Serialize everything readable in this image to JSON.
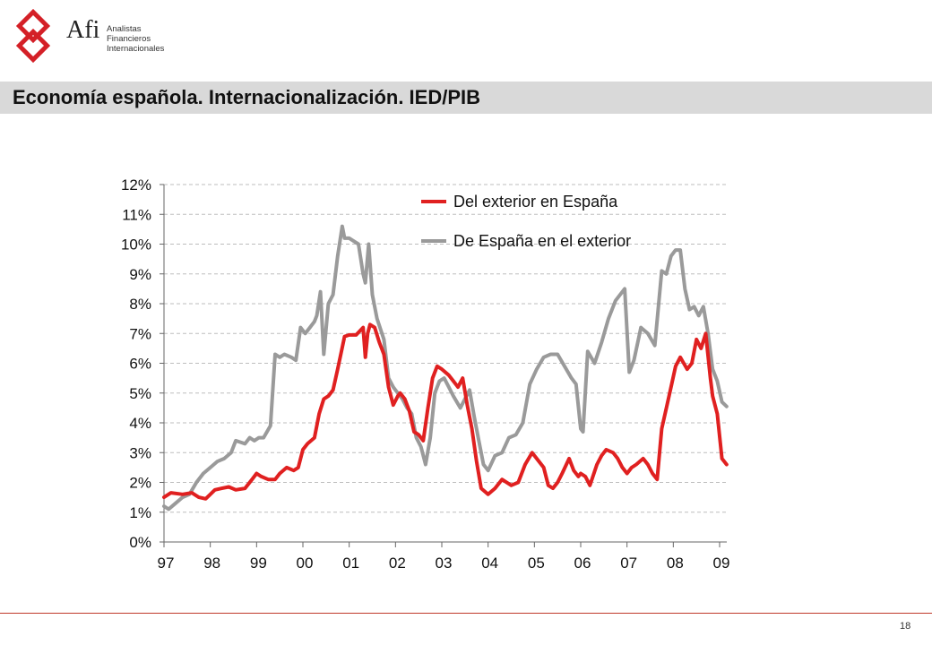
{
  "header": {
    "logo_mark": "Afi",
    "logo_lines": [
      "Analistas",
      "Financieros",
      "Internacionales"
    ],
    "title": "Economía española. Internacionalización. IED/PIB"
  },
  "footer": {
    "page_number": "18"
  },
  "colors": {
    "red_series": "#e02020",
    "gray_series": "#9a9a9a",
    "logo_red": "#d42027"
  },
  "chart_data": {
    "type": "line",
    "title": "",
    "xlabel": "",
    "ylabel": "",
    "ylim": [
      0,
      12
    ],
    "xlim": [
      1997.0,
      2009.15
    ],
    "yticks": [
      "0%",
      "1%",
      "2%",
      "3%",
      "4%",
      "5%",
      "6%",
      "7%",
      "8%",
      "9%",
      "10%",
      "11%",
      "12%"
    ],
    "xtick_labels": [
      "97",
      "98",
      "99",
      "00",
      "01",
      "02",
      "03",
      "04",
      "05",
      "06",
      "07",
      "08",
      "09"
    ],
    "grid": "horizontal dashed",
    "legend_position": "top-center",
    "series": [
      {
        "name": "Del exterior en España",
        "color": "#e02020",
        "x": [
          1997.0,
          1997.15,
          1997.4,
          1997.6,
          1997.75,
          1997.9,
          1998.0,
          1998.1,
          1998.25,
          1998.4,
          1998.55,
          1998.75,
          1998.9,
          1999.0,
          1999.1,
          1999.25,
          1999.4,
          1999.5,
          1999.65,
          1999.8,
          1999.9,
          2000.0,
          2000.1,
          2000.25,
          2000.35,
          2000.45,
          2000.55,
          2000.65,
          2000.75,
          2000.9,
          2001.0,
          2001.15,
          2001.3,
          2001.35,
          2001.4,
          2001.45,
          2001.55,
          2001.65,
          2001.75,
          2001.85,
          2001.95,
          2002.05,
          2002.1,
          2002.2,
          2002.3,
          2002.4,
          2002.5,
          2002.6,
          2002.7,
          2002.8,
          2002.9,
          2003.0,
          2003.15,
          2003.25,
          2003.35,
          2003.45,
          2003.55,
          2003.65,
          2003.75,
          2003.85,
          2004.0,
          2004.15,
          2004.3,
          2004.5,
          2004.65,
          2004.8,
          2004.95,
          2005.05,
          2005.2,
          2005.3,
          2005.4,
          2005.5,
          2005.6,
          2005.75,
          2005.85,
          2005.95,
          2006.0,
          2006.1,
          2006.2,
          2006.35,
          2006.45,
          2006.55,
          2006.7,
          2006.8,
          2006.9,
          2007.0,
          2007.1,
          2007.2,
          2007.35,
          2007.45,
          2007.55,
          2007.65,
          2007.75,
          2007.85,
          2007.95,
          2008.05,
          2008.15,
          2008.3,
          2008.4,
          2008.5,
          2008.6,
          2008.7,
          2008.8,
          2008.85,
          2008.95,
          2009.05,
          2009.15
        ],
        "values": [
          1.5,
          1.65,
          1.6,
          1.65,
          1.5,
          1.45,
          1.6,
          1.75,
          1.8,
          1.85,
          1.75,
          1.8,
          2.1,
          2.3,
          2.2,
          2.1,
          2.1,
          2.3,
          2.5,
          2.4,
          2.5,
          3.1,
          3.3,
          3.5,
          4.3,
          4.8,
          4.9,
          5.1,
          5.8,
          6.9,
          6.95,
          6.95,
          7.2,
          6.2,
          7.0,
          7.3,
          7.2,
          6.7,
          6.3,
          5.2,
          4.6,
          4.9,
          5.0,
          4.8,
          4.4,
          3.7,
          3.6,
          3.4,
          4.5,
          5.5,
          5.9,
          5.8,
          5.6,
          5.4,
          5.2,
          5.5,
          4.6,
          3.8,
          2.7,
          1.8,
          1.6,
          1.8,
          2.1,
          1.9,
          2.0,
          2.6,
          3.0,
          2.8,
          2.5,
          1.9,
          1.8,
          2.0,
          2.3,
          2.8,
          2.4,
          2.2,
          2.3,
          2.2,
          1.9,
          2.6,
          2.9,
          3.1,
          3.0,
          2.8,
          2.5,
          2.3,
          2.5,
          2.6,
          2.8,
          2.6,
          2.3,
          2.1,
          3.8,
          4.5,
          5.2,
          5.9,
          6.2,
          5.8,
          6.0,
          6.8,
          6.5,
          7.0,
          5.5,
          4.9,
          4.3,
          2.8,
          2.6
        ]
      },
      {
        "name": "De España en el exterior",
        "color": "#9a9a9a",
        "x": [
          1997.0,
          1997.1,
          1997.25,
          1997.4,
          1997.55,
          1997.7,
          1997.85,
          1998.0,
          1998.15,
          1998.3,
          1998.45,
          1998.55,
          1998.65,
          1998.75,
          1998.85,
          1998.95,
          1999.05,
          1999.15,
          1999.3,
          1999.4,
          1999.5,
          1999.6,
          1999.75,
          1999.85,
          1999.95,
          2000.05,
          2000.15,
          2000.25,
          2000.3,
          2000.38,
          2000.45,
          2000.55,
          2000.65,
          2000.75,
          2000.85,
          2000.9,
          2001.0,
          2001.1,
          2001.2,
          2001.3,
          2001.35,
          2001.42,
          2001.5,
          2001.6,
          2001.75,
          2001.85,
          2001.95,
          2002.05,
          2002.15,
          2002.25,
          2002.35,
          2002.45,
          2002.55,
          2002.65,
          2002.75,
          2002.85,
          2002.95,
          2003.05,
          2003.15,
          2003.25,
          2003.4,
          2003.5,
          2003.6,
          2003.7,
          2003.8,
          2003.9,
          2004.0,
          2004.15,
          2004.3,
          2004.45,
          2004.6,
          2004.75,
          2004.9,
          2005.05,
          2005.2,
          2005.35,
          2005.5,
          2005.65,
          2005.8,
          2005.9,
          2006.0,
          2006.05,
          2006.15,
          2006.3,
          2006.45,
          2006.6,
          2006.75,
          2006.9,
          2006.95,
          2007.05,
          2007.15,
          2007.3,
          2007.45,
          2007.6,
          2007.75,
          2007.85,
          2007.95,
          2008.05,
          2008.15,
          2008.25,
          2008.35,
          2008.45,
          2008.55,
          2008.65,
          2008.75,
          2008.85,
          2008.95,
          2009.05,
          2009.15
        ],
        "values": [
          1.2,
          1.1,
          1.3,
          1.5,
          1.6,
          2.0,
          2.3,
          2.5,
          2.7,
          2.8,
          3.0,
          3.4,
          3.35,
          3.3,
          3.5,
          3.4,
          3.5,
          3.5,
          3.9,
          6.3,
          6.2,
          6.3,
          6.2,
          6.1,
          7.2,
          7.0,
          7.2,
          7.4,
          7.6,
          8.4,
          6.3,
          8.0,
          8.3,
          9.6,
          10.6,
          10.2,
          10.2,
          10.1,
          10.0,
          9.0,
          8.7,
          10.0,
          8.3,
          7.5,
          6.8,
          5.5,
          5.2,
          5.0,
          4.8,
          4.5,
          4.3,
          3.5,
          3.2,
          2.6,
          3.5,
          5.0,
          5.4,
          5.5,
          5.2,
          4.9,
          4.5,
          4.8,
          5.1,
          4.2,
          3.4,
          2.6,
          2.4,
          2.9,
          3.0,
          3.5,
          3.6,
          4.0,
          5.3,
          5.8,
          6.2,
          6.3,
          6.3,
          5.9,
          5.5,
          5.3,
          3.8,
          3.7,
          6.4,
          6.0,
          6.7,
          7.5,
          8.1,
          8.4,
          8.5,
          5.7,
          6.1,
          7.2,
          7.0,
          6.6,
          9.1,
          9.0,
          9.6,
          9.8,
          9.8,
          8.5,
          7.8,
          7.9,
          7.6,
          7.9,
          7.0,
          5.8,
          5.4,
          4.7,
          4.55
        ]
      }
    ]
  }
}
